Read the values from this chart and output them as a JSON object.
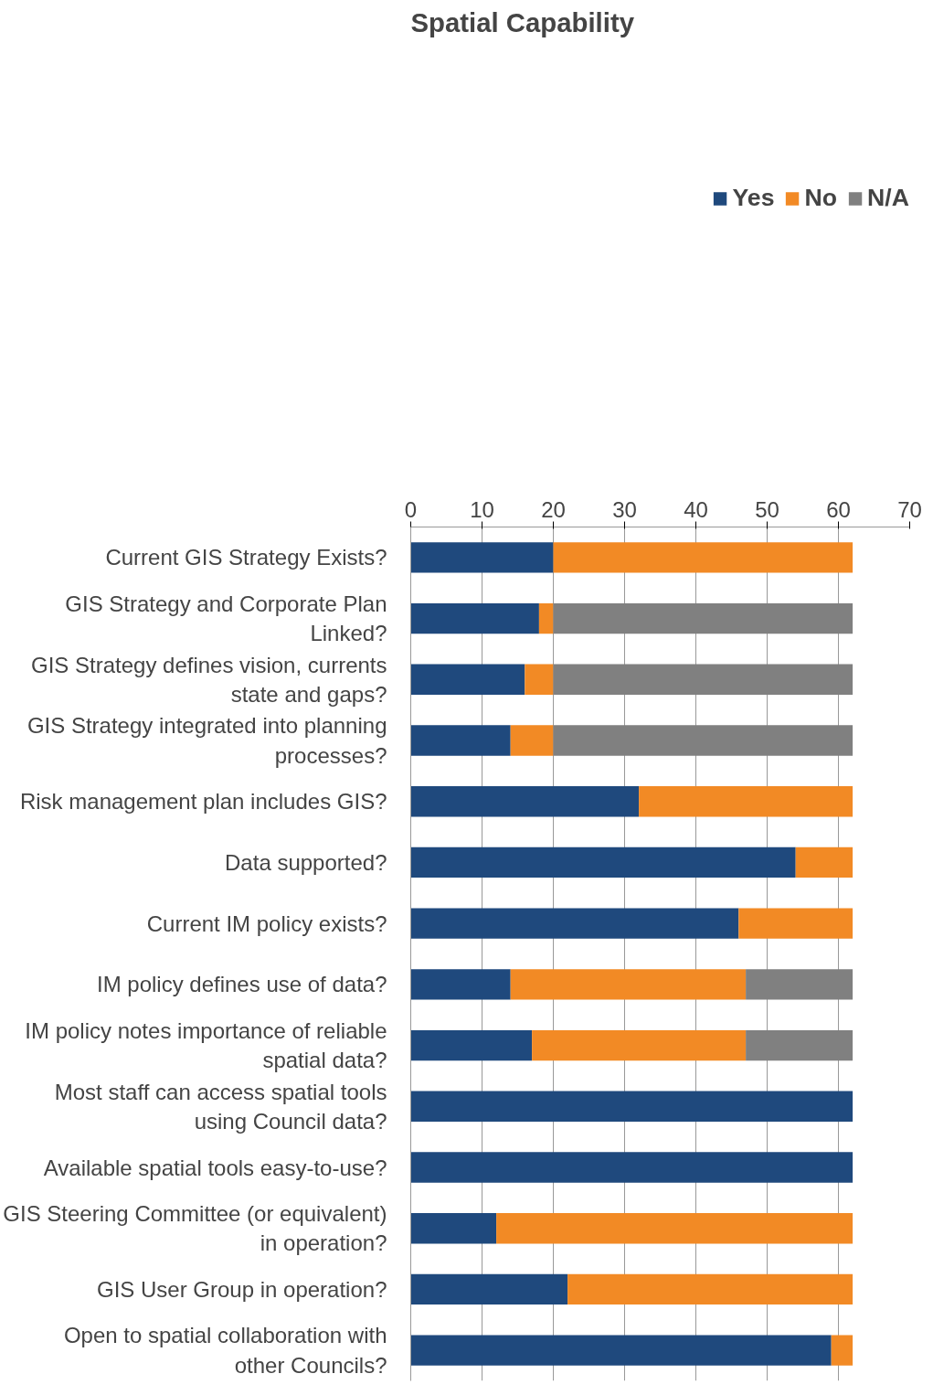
{
  "chart_data": {
    "type": "bar",
    "orientation": "horizontal",
    "stacked": true,
    "title": "Spatial Capability",
    "categories": [
      "Current GIS Strategy Exists?",
      "GIS Strategy and Corporate Plan Linked?",
      "GIS Strategy defines vision, currents state and gaps?",
      "GIS Strategy integrated into planning processes?",
      "Risk management plan includes GIS?",
      "Data supported?",
      "Current IM policy exists?",
      "IM policy defines use of data?",
      "IM policy notes importance of reliable spatial data?",
      "Most staff can access spatial tools using Council data?",
      "Available spatial tools easy-to-use?",
      "GIS Steering Committee (or equivalent) in operation?",
      "GIS User Group in operation?",
      "Open to spatial collaboration with other Councils?"
    ],
    "series": [
      {
        "name": "Yes",
        "color": "#1f497d",
        "values": [
          20,
          18,
          16,
          14,
          32,
          54,
          46,
          14,
          17,
          62,
          62,
          12,
          22,
          59
        ]
      },
      {
        "name": "No",
        "color": "#f28a25",
        "values": [
          42,
          2,
          4,
          6,
          30,
          8,
          16,
          33,
          30,
          0,
          0,
          50,
          40,
          3
        ]
      },
      {
        "name": "N/A",
        "color": "#808080",
        "values": [
          0,
          42,
          42,
          42,
          0,
          0,
          0,
          15,
          15,
          0,
          0,
          0,
          0,
          0
        ]
      }
    ],
    "xlim": [
      0,
      70
    ],
    "xticks": [
      0,
      10,
      20,
      30,
      40,
      50,
      60,
      70
    ],
    "grid": "x",
    "legend": "top"
  }
}
